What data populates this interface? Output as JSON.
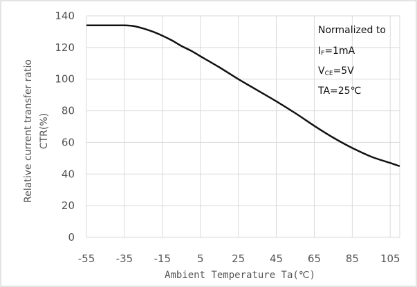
{
  "chart_data": {
    "type": "line",
    "title": "",
    "xlabel": "Ambient Temperature Ta(℃)",
    "ylabel_line1": "Relative current transfer ratio",
    "ylabel_line2": "CTR(%)",
    "xlim": [
      -55,
      110
    ],
    "ylim": [
      0,
      140
    ],
    "x_ticks": [
      -55,
      -35,
      -15,
      5,
      25,
      45,
      65,
      85,
      105
    ],
    "y_ticks": [
      0,
      20,
      40,
      60,
      80,
      100,
      120,
      140
    ],
    "grid": true,
    "series": [
      {
        "color": "#111111",
        "x": [
          -55,
          -45,
          -35,
          -30,
          -25,
          -20,
          -15,
          -10,
          -5,
          0,
          5,
          15,
          25,
          35,
          45,
          55,
          65,
          75,
          85,
          95,
          105,
          110
        ],
        "y": [
          134,
          134,
          134,
          133.5,
          132,
          130,
          127.5,
          124.5,
          121,
          118,
          114.5,
          107.5,
          100,
          93,
          86,
          78.5,
          70.5,
          63,
          56.5,
          51,
          47,
          45
        ]
      }
    ],
    "annotation": {
      "line1": "Normalized to",
      "line2_main": "I",
      "line2_sub": "F",
      "line2_rest": "=1mA",
      "line3_main": "V",
      "line3_sub": "CE",
      "line3_rest": "=5V",
      "line4": "TA=25℃"
    }
  }
}
